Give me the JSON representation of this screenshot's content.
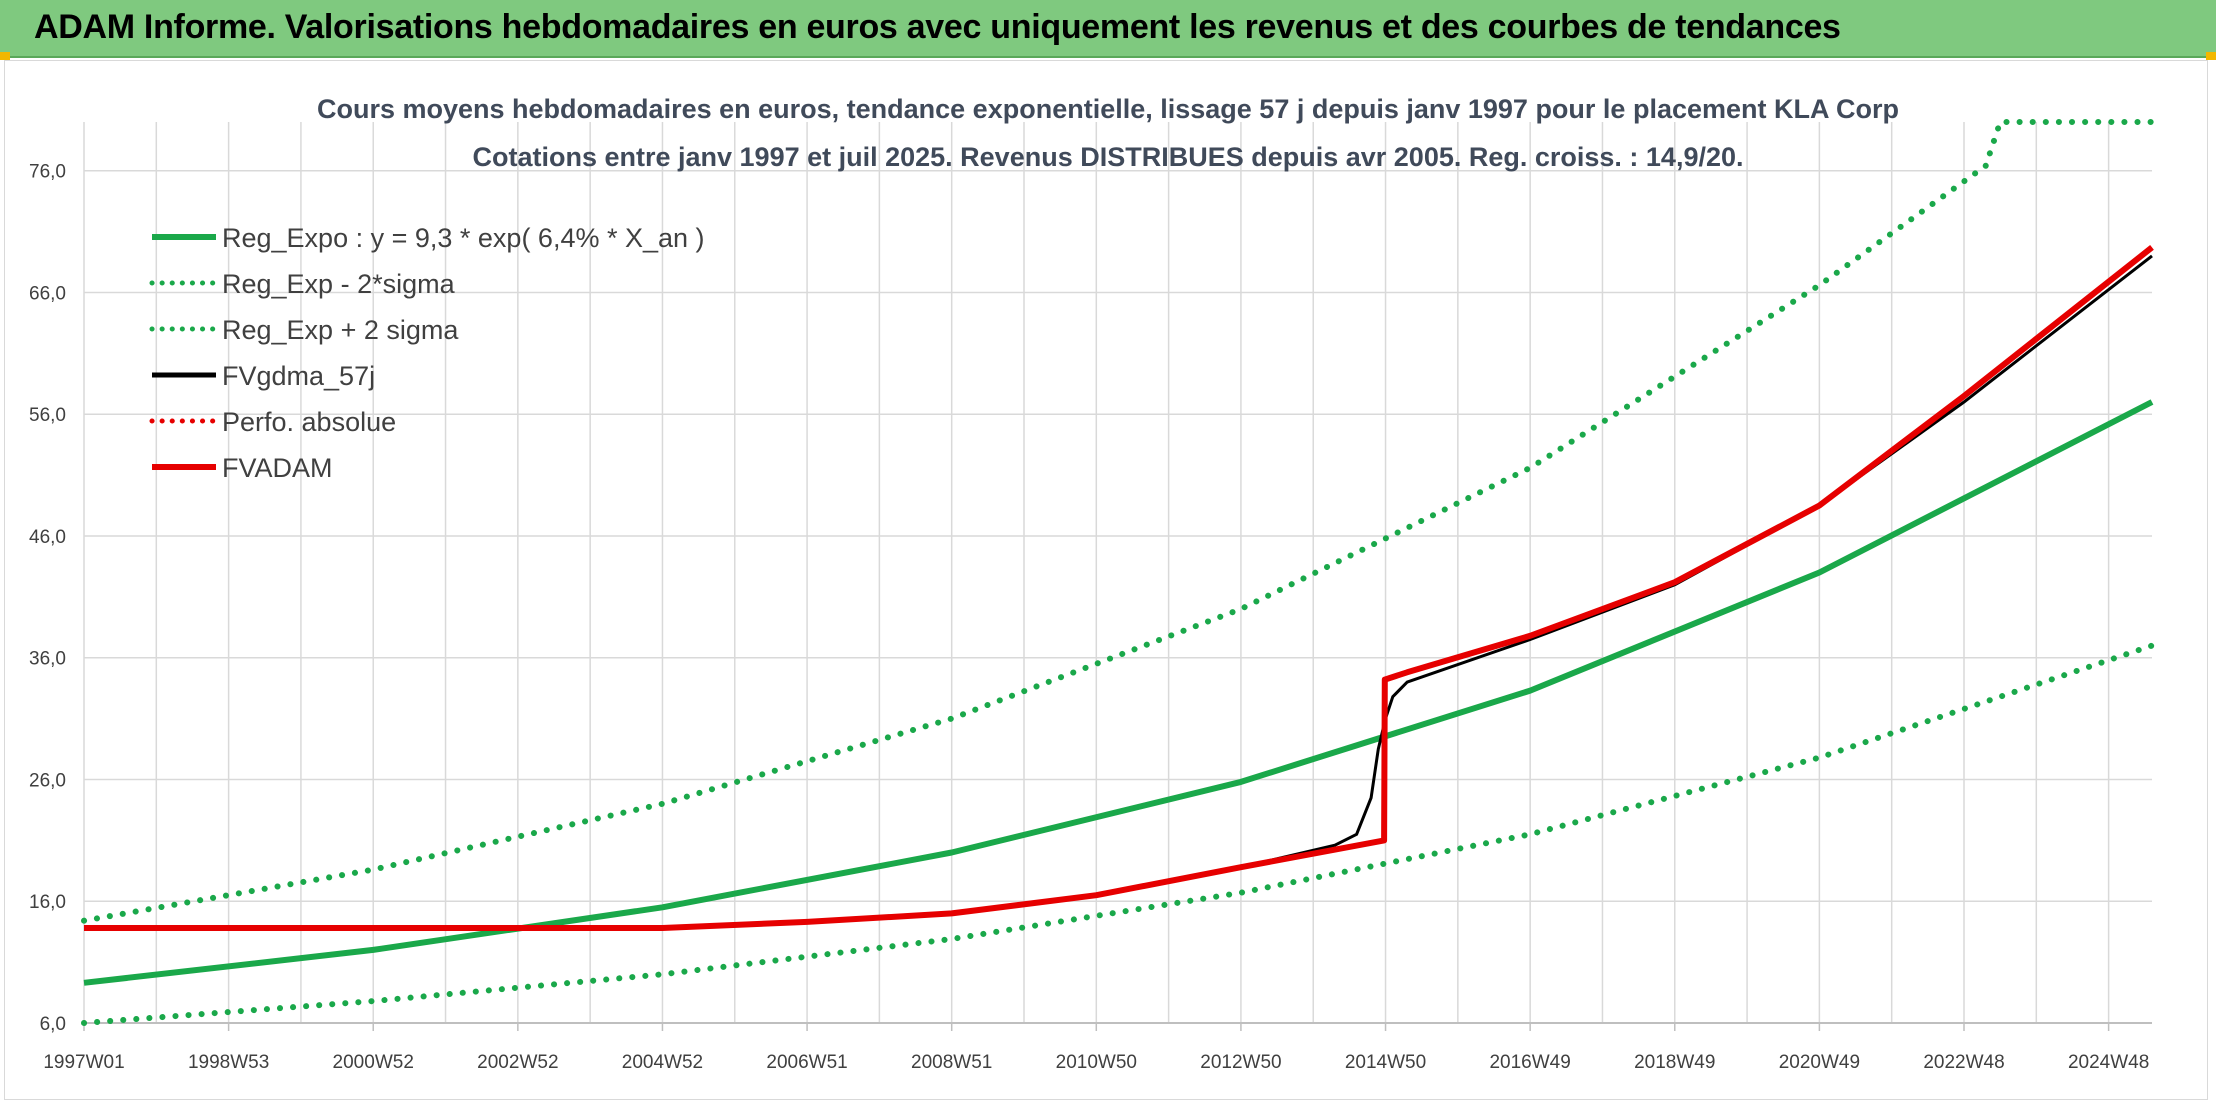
{
  "header": {
    "title": "ADAM Informe. Valorisations hebdomadaires en euros avec uniquement les revenus et des courbes de tendances"
  },
  "colors": {
    "header_bg": "#7fc97f",
    "trend_green": "#1aa84a",
    "adam_red": "#e60000",
    "fv_black": "#000000",
    "grid": "#d9d9d9"
  },
  "chart_data": {
    "type": "line",
    "title": [
      "Cours moyens hebdomadaires en euros, tendance exponentielle, lissage 57 j depuis janv 1997 pour le placement KLA Corp",
      "Cotations entre janv 1997 et juil 2025. Revenus DISTRIBUES depuis avr 2005. Reg. croiss. : 14,9/20."
    ],
    "xlabel": "",
    "ylabel": "",
    "ylim": [
      6,
      80
    ],
    "y_ticks": [
      "6,0",
      "16,0",
      "26,0",
      "36,0",
      "46,0",
      "56,0",
      "66,0",
      "76,0"
    ],
    "y_tick_values": [
      6,
      16,
      26,
      36,
      46,
      56,
      66,
      76
    ],
    "x_ticks": [
      "1997W01",
      "1998W53",
      "2000W52",
      "2002W52",
      "2004W52",
      "2006W51",
      "2008W51",
      "2010W50",
      "2012W50",
      "2014W50",
      "2016W49",
      "2018W49",
      "2020W49",
      "2022W48",
      "2024W48"
    ],
    "x_tick_years": [
      1997.0,
      1999.0,
      2001.0,
      2003.0,
      2005.0,
      2007.0,
      2009.0,
      2011.0,
      2013.0,
      2015.0,
      2017.0,
      2019.0,
      2021.0,
      2023.0,
      2025.0
    ],
    "xlim": [
      1997.0,
      2025.6
    ],
    "grid": true,
    "legend_position": "top-left",
    "series": [
      {
        "name": "Reg_Expo : y = 9,3 * exp( 6,4% *  X_an )",
        "style": "solid",
        "color": "#1aa84a",
        "x": [
          1997.0,
          2001.0,
          2005.0,
          2009.0,
          2013.0,
          2017.0,
          2021.0,
          2025.6
        ],
        "y": [
          9.3,
          12.0,
          15.5,
          20.0,
          25.8,
          33.3,
          43.0,
          57.0
        ]
      },
      {
        "name": "Reg_Exp - 2*sigma",
        "style": "dotted",
        "color": "#1aa84a",
        "x": [
          1997.0,
          2001.0,
          2005.0,
          2009.0,
          2013.0,
          2017.0,
          2021.0,
          2025.6
        ],
        "y": [
          6.0,
          7.8,
          10.0,
          12.9,
          16.7,
          21.5,
          27.8,
          37.0
        ]
      },
      {
        "name": "Reg_Exp + 2 sigma",
        "style": "dotted",
        "color": "#1aa84a",
        "x": [
          1997.0,
          2001.0,
          2005.0,
          2009.0,
          2013.0,
          2017.0,
          2021.0,
          2023.3,
          2023.5,
          2025.6
        ],
        "y": [
          14.4,
          18.6,
          24.0,
          31.0,
          40.0,
          51.6,
          66.6,
          76.4,
          80.0,
          80.0
        ]
      },
      {
        "name": "FVgdma_57j",
        "style": "solid",
        "color": "#000000",
        "x": [
          1997.0,
          2005.0,
          2007.0,
          2009.0,
          2011.0,
          2013.0,
          2014.3,
          2014.6,
          2014.8,
          2014.9,
          2015.0,
          2015.1,
          2015.3,
          2017.0,
          2019.0,
          2021.0,
          2023.0,
          2025.6
        ],
        "y": [
          13.8,
          13.8,
          14.3,
          15.0,
          16.5,
          18.8,
          20.6,
          21.5,
          24.5,
          28.5,
          31.0,
          32.8,
          34.0,
          37.5,
          42.0,
          48.5,
          57.0,
          69.0
        ]
      },
      {
        "name": "Perfo. absolue",
        "style": "dotted",
        "color": "#e60000",
        "x": [],
        "y": []
      },
      {
        "name": "FVADAM",
        "style": "solid",
        "color": "#e60000",
        "x": [
          1997.0,
          2005.0,
          2007.0,
          2009.0,
          2011.0,
          2013.0,
          2014.98,
          2014.99,
          2015.3,
          2017.0,
          2019.0,
          2021.0,
          2023.0,
          2025.6
        ],
        "y": [
          13.8,
          13.8,
          14.3,
          15.0,
          16.5,
          18.8,
          21.0,
          34.2,
          34.8,
          37.8,
          42.2,
          48.5,
          57.5,
          69.7
        ]
      }
    ]
  }
}
